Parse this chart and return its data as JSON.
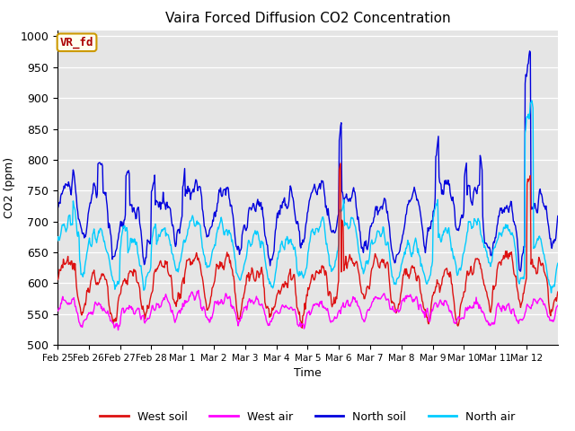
{
  "title": "Vaira Forced Diffusion CO2 Concentration",
  "xlabel": "Time",
  "ylabel": "CO2 (ppm)",
  "ylim": [
    500,
    1010
  ],
  "yticks": [
    500,
    550,
    600,
    650,
    700,
    750,
    800,
    850,
    900,
    950,
    1000
  ],
  "n_days": 16,
  "pts_per_day": 48,
  "colors": {
    "west_soil": "#dd1111",
    "west_air": "#ff00ff",
    "north_soil": "#0000dd",
    "north_air": "#00ccff"
  },
  "legend_labels": [
    "West soil",
    "West air",
    "North soil",
    "North air"
  ],
  "annotation_text": "VR_fd",
  "annotation_color": "#aa0000",
  "annotation_bg": "#fffff0",
  "bg_color": "#e5e5e5",
  "xtick_labels": [
    "Feb 25",
    "Feb 26",
    "Feb 27",
    "Feb 28",
    "Mar 1",
    "Mar 2",
    "Mar 3",
    "Mar 4",
    "Mar 5",
    "Mar 6",
    "Mar 7",
    "Mar 8",
    "Mar 9",
    "Mar 10",
    "Mar 11",
    "Mar 12"
  ],
  "linewidth": 1.0,
  "figsize": [
    6.4,
    4.8
  ],
  "dpi": 100
}
